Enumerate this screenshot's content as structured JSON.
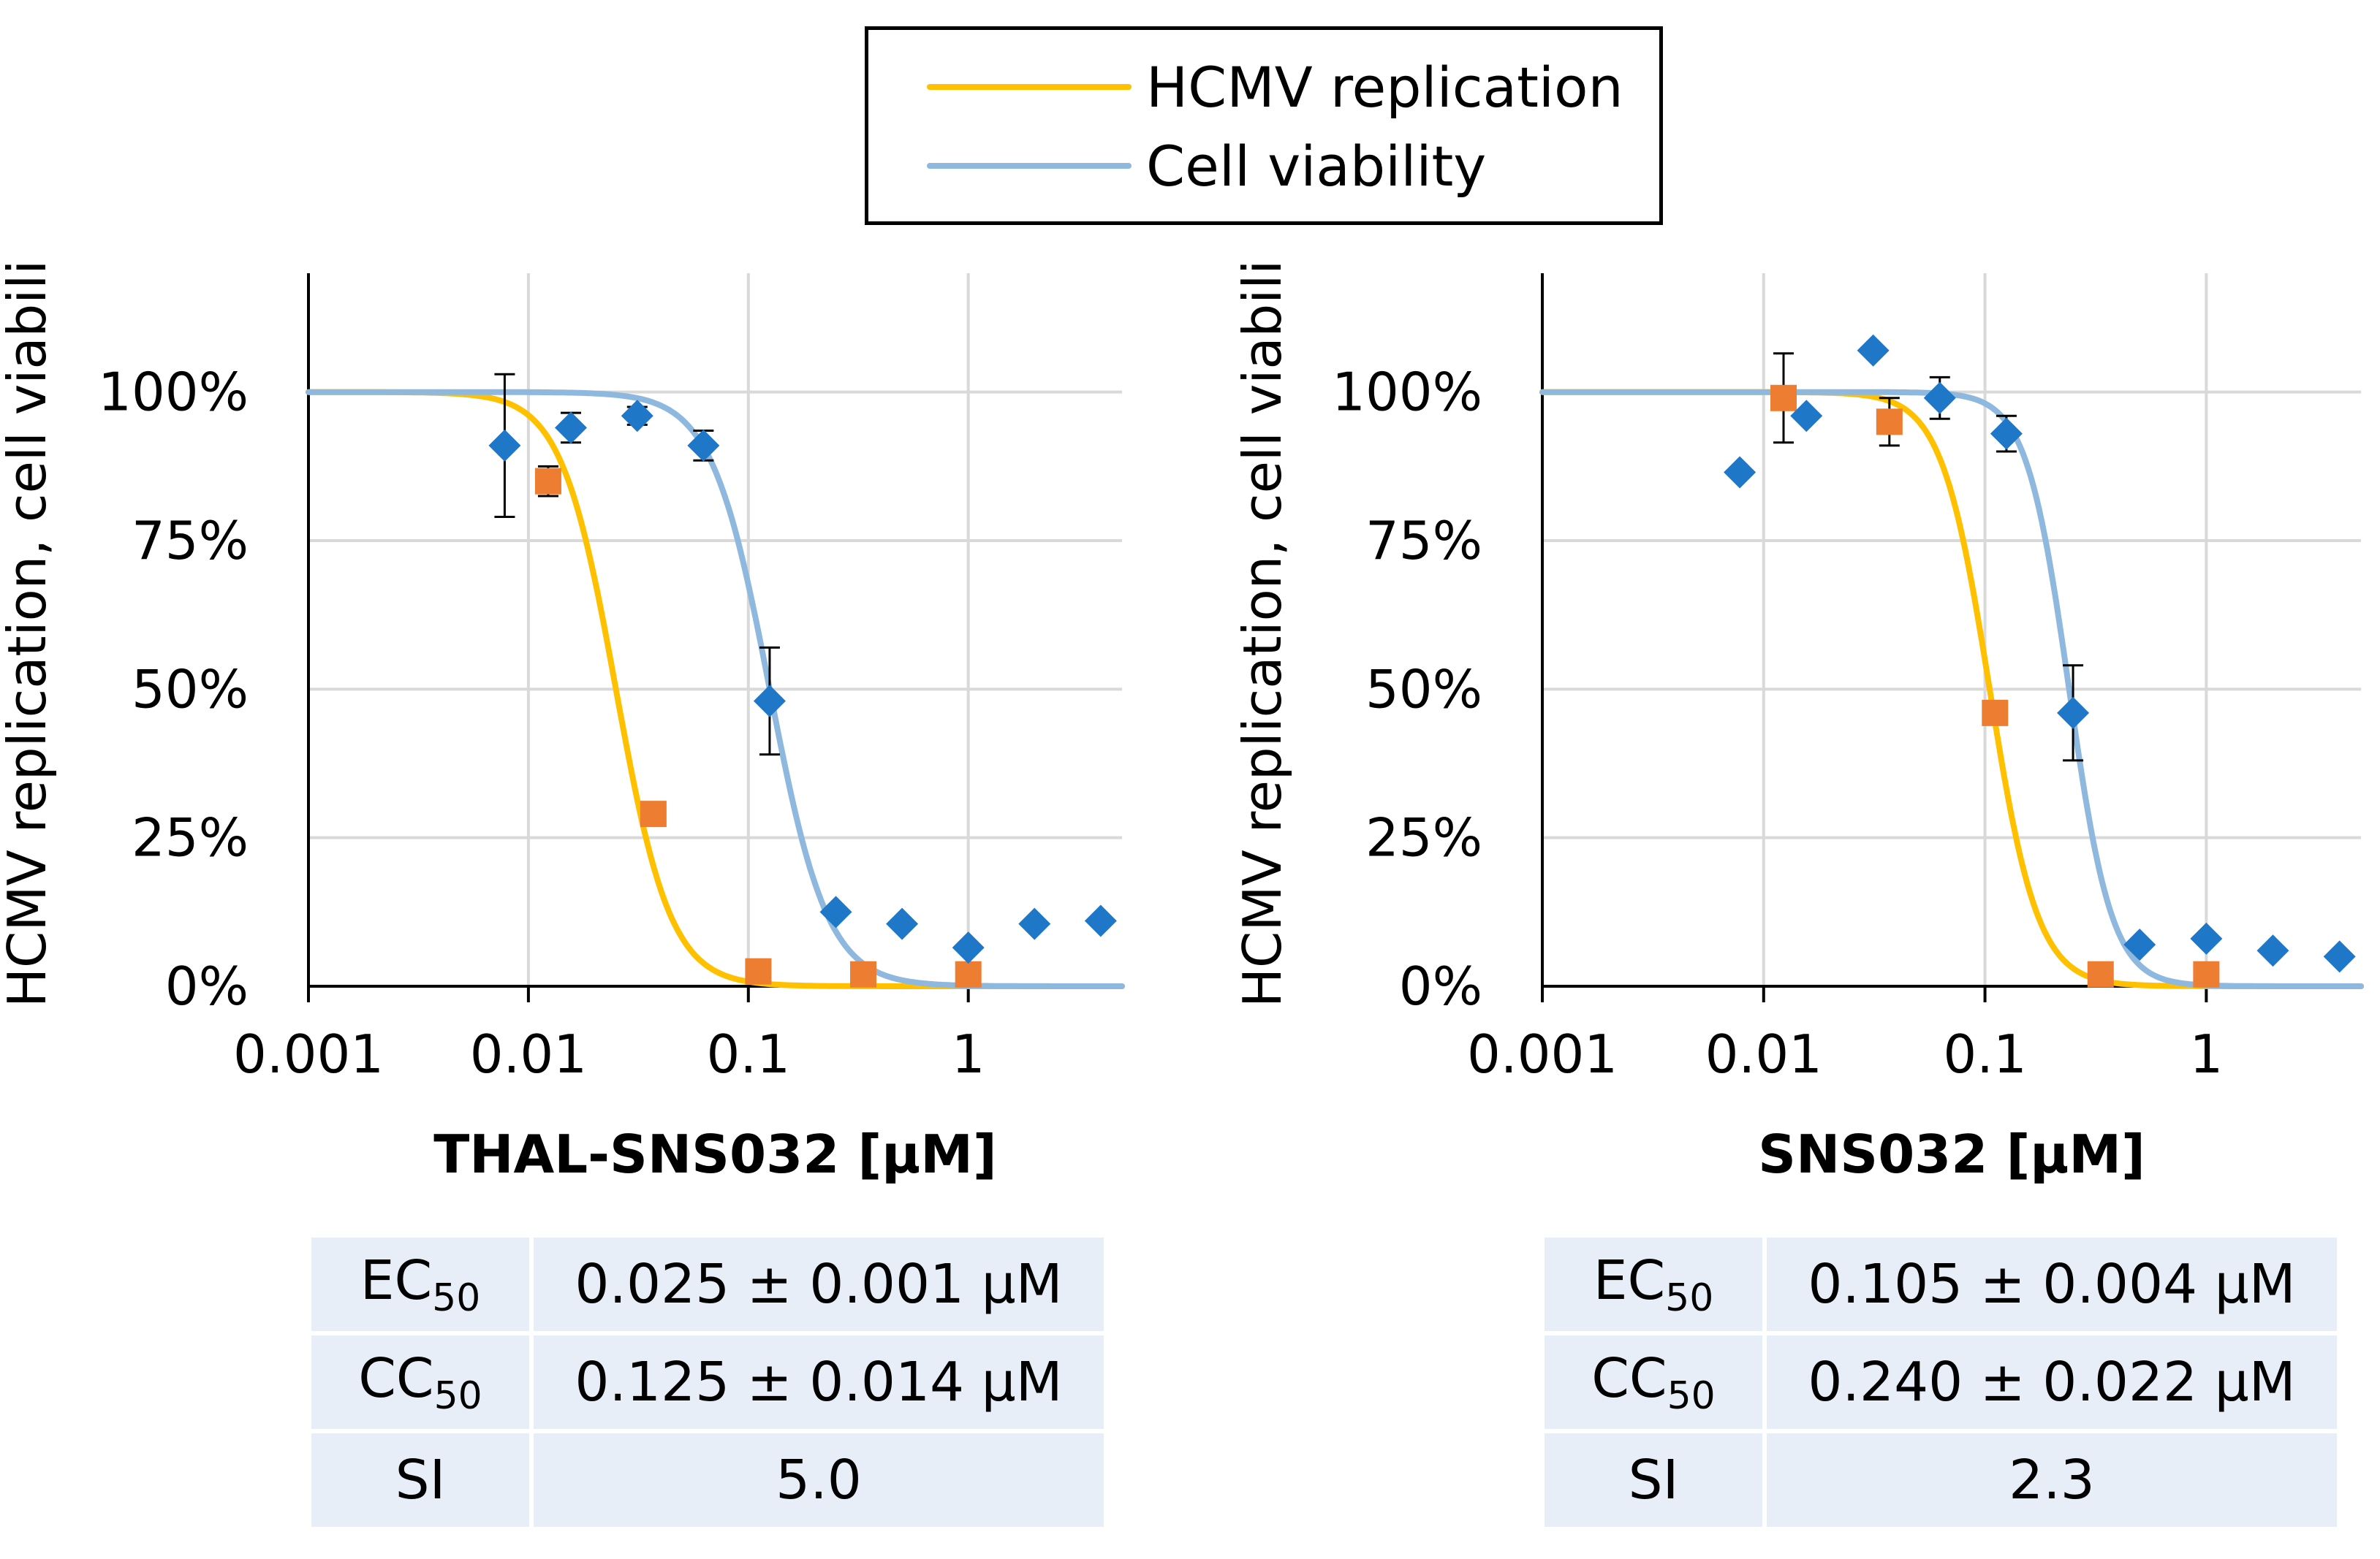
{
  "legend": {
    "items": [
      {
        "label": "HCMV replication",
        "color": "#FFC000"
      },
      {
        "label": "Cell viability",
        "color": "#8FB8DE"
      }
    ]
  },
  "colors": {
    "replication_marker": "#ED7D31",
    "viability_marker": "#1F77C8",
    "grid": "#D9D9D9",
    "table_bg": "#E8EEF8"
  },
  "chart_data": [
    {
      "type": "scatter",
      "title": "",
      "xlabel": "THAL-SNS032 [µM]",
      "ylabel": "HCMV replication, cell viability",
      "x_scale": "log",
      "xlim": [
        0.001,
        5
      ],
      "ylim": [
        0,
        120
      ],
      "x_ticks": [
        0.001,
        0.01,
        0.1,
        1
      ],
      "x_tick_labels": [
        "0.001",
        "0.01",
        "0.1",
        "1"
      ],
      "y_ticks": [
        0,
        25,
        50,
        75,
        100
      ],
      "y_tick_labels": [
        "0%",
        "25%",
        "50%",
        "75%",
        "100%"
      ],
      "grid": true,
      "series": [
        {
          "name": "HCMV replication",
          "marker": "square",
          "x": [
            0.0123,
            0.037,
            0.111,
            0.333,
            1.0
          ],
          "y": [
            85,
            29,
            2.5,
            2,
            2
          ],
          "err": [
            2.5,
            0,
            0,
            0,
            0
          ]
        },
        {
          "name": "Cell viability",
          "marker": "diamond",
          "x": [
            0.0078,
            0.0156,
            0.03125,
            0.0625,
            0.125,
            0.25,
            0.5,
            1.0,
            2.0,
            4.0
          ],
          "y": [
            91,
            94,
            96,
            91,
            48,
            12.5,
            10.5,
            6.5,
            10.5,
            11
          ],
          "err": [
            12,
            2.5,
            1.5,
            2.5,
            9,
            0,
            0,
            0,
            0,
            0
          ]
        }
      ],
      "fits": [
        {
          "name": "HCMV replication",
          "ic50": 0.025,
          "hill": 3.5
        },
        {
          "name": "Cell viability",
          "ic50": 0.125,
          "hill": 3.3
        }
      ]
    },
    {
      "type": "scatter",
      "title": "",
      "xlabel": "SNS032 [µM]",
      "ylabel": "HCMV replication, cell viability",
      "x_scale": "log",
      "xlim": [
        0.001,
        5
      ],
      "ylim": [
        0,
        120
      ],
      "x_ticks": [
        0.001,
        0.01,
        0.1,
        1
      ],
      "x_tick_labels": [
        "0.001",
        "0.01",
        "0.1",
        "1"
      ],
      "y_ticks": [
        0,
        25,
        50,
        75,
        100
      ],
      "y_tick_labels": [
        "0%",
        "25%",
        "50%",
        "75%",
        "100%"
      ],
      "grid": true,
      "series": [
        {
          "name": "HCMV replication",
          "marker": "square",
          "x": [
            0.0123,
            0.037,
            0.111,
            0.333,
            1.0
          ],
          "y": [
            99,
            95,
            46,
            2,
            2
          ],
          "err": [
            7.5,
            4,
            0,
            0,
            0
          ]
        },
        {
          "name": "Cell viability",
          "marker": "diamond",
          "x": [
            0.0078,
            0.0156,
            0.03125,
            0.0625,
            0.125,
            0.25,
            0.5,
            1.0,
            2.0,
            4.0
          ],
          "y": [
            86.5,
            96,
            107,
            99,
            93,
            46,
            7,
            8,
            6,
            5
          ],
          "err": [
            0,
            0,
            0,
            3.5,
            3,
            8,
            0,
            0,
            0,
            0
          ]
        }
      ],
      "fits": [
        {
          "name": "HCMV replication",
          "ic50": 0.105,
          "hill": 4.0
        },
        {
          "name": "Cell viability",
          "ic50": 0.24,
          "hill": 4.5
        }
      ]
    }
  ],
  "tables": [
    {
      "rows": [
        {
          "label": "EC",
          "sub": "50",
          "value": "0.025 ± 0.001 µM"
        },
        {
          "label": "CC",
          "sub": "50",
          "value": "0.125 ± 0.014 µM"
        },
        {
          "label": "SI",
          "sub": "",
          "value": "5.0"
        }
      ]
    },
    {
      "rows": [
        {
          "label": "EC",
          "sub": "50",
          "value": "0.105 ± 0.004 µM"
        },
        {
          "label": "CC",
          "sub": "50",
          "value": "0.240 ± 0.022 µM"
        },
        {
          "label": "SI",
          "sub": "",
          "value": "2.3"
        }
      ]
    }
  ]
}
